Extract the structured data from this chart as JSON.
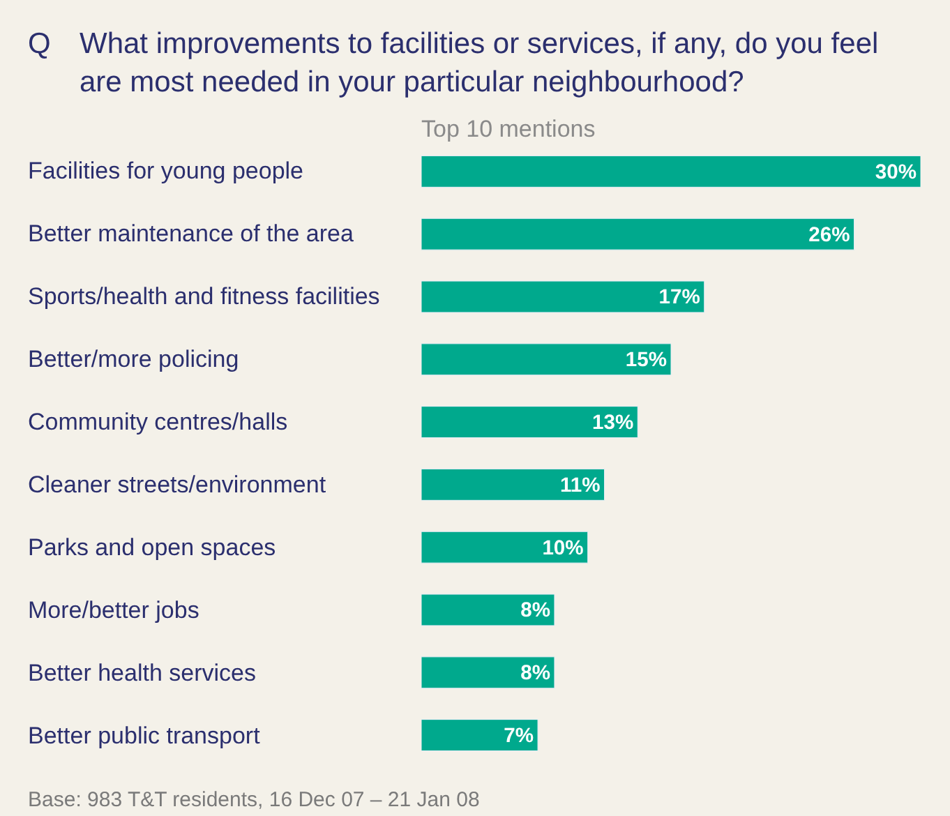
{
  "chart_data": {
    "type": "bar",
    "orientation": "horizontal",
    "title": "What improvements to facilities or services, if any, do you feel are most needed in your particular neighbourhood?",
    "subtitle": "Top 10 mentions",
    "annotations": [
      "Q",
      "Base: 983 T&T residents, 16 Dec 07 – 21 Jan 08"
    ],
    "categories": [
      "Facilities for young people",
      "Better maintenance of the area",
      "Sports/health and fitness facilities",
      "Better/more policing",
      "Community centres/halls",
      "Cleaner streets/environment",
      "Parks and open spaces",
      "More/better jobs",
      "Better health services",
      "Better public transport"
    ],
    "values": [
      30,
      26,
      17,
      15,
      13,
      11,
      10,
      8,
      8,
      7
    ],
    "value_labels": [
      "30%",
      "26%",
      "17%",
      "15%",
      "13%",
      "11%",
      "10%",
      "8%",
      "8%",
      "7%"
    ],
    "color": "#00a98d",
    "legend": false
  }
}
